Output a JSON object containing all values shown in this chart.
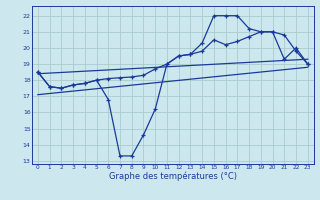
{
  "xlabel": "Graphe des températures (°C)",
  "background_color": "#cce8ee",
  "grid_color": "#aacccc",
  "line_color": "#1a3a9a",
  "ylim": [
    12.8,
    22.6
  ],
  "xlim": [
    -0.5,
    23.5
  ],
  "yticks": [
    13,
    14,
    15,
    16,
    17,
    18,
    19,
    20,
    21,
    22
  ],
  "xticks": [
    0,
    1,
    2,
    3,
    4,
    5,
    6,
    7,
    8,
    9,
    10,
    11,
    12,
    13,
    14,
    15,
    16,
    17,
    18,
    19,
    20,
    21,
    22,
    23
  ],
  "line1_x": [
    0,
    1,
    2,
    3,
    4,
    5,
    6,
    7,
    8,
    9,
    10,
    11,
    12,
    13,
    14,
    15,
    16,
    17,
    18,
    19,
    20,
    21,
    22,
    23
  ],
  "line1_y": [
    18.5,
    17.6,
    17.5,
    17.7,
    17.8,
    18.0,
    16.8,
    13.3,
    13.3,
    14.6,
    16.2,
    19.0,
    19.5,
    19.6,
    20.3,
    22.0,
    22.0,
    22.0,
    21.2,
    21.0,
    21.0,
    19.3,
    20.0,
    19.0
  ],
  "line2_x": [
    0,
    1,
    2,
    3,
    4,
    5,
    6,
    7,
    8,
    9,
    10,
    11,
    12,
    13,
    14,
    15,
    16,
    17,
    18,
    19,
    20,
    21,
    22,
    23
  ],
  "line2_y": [
    18.5,
    17.6,
    17.5,
    17.7,
    17.8,
    18.0,
    18.1,
    18.15,
    18.2,
    18.3,
    18.7,
    19.0,
    19.5,
    19.6,
    19.8,
    20.5,
    20.2,
    20.4,
    20.7,
    21.0,
    21.0,
    20.8,
    19.8,
    19.0
  ],
  "line3_x": [
    0,
    23
  ],
  "line3_y": [
    17.1,
    18.8
  ],
  "line4_x": [
    0,
    23
  ],
  "line4_y": [
    18.4,
    19.3
  ]
}
